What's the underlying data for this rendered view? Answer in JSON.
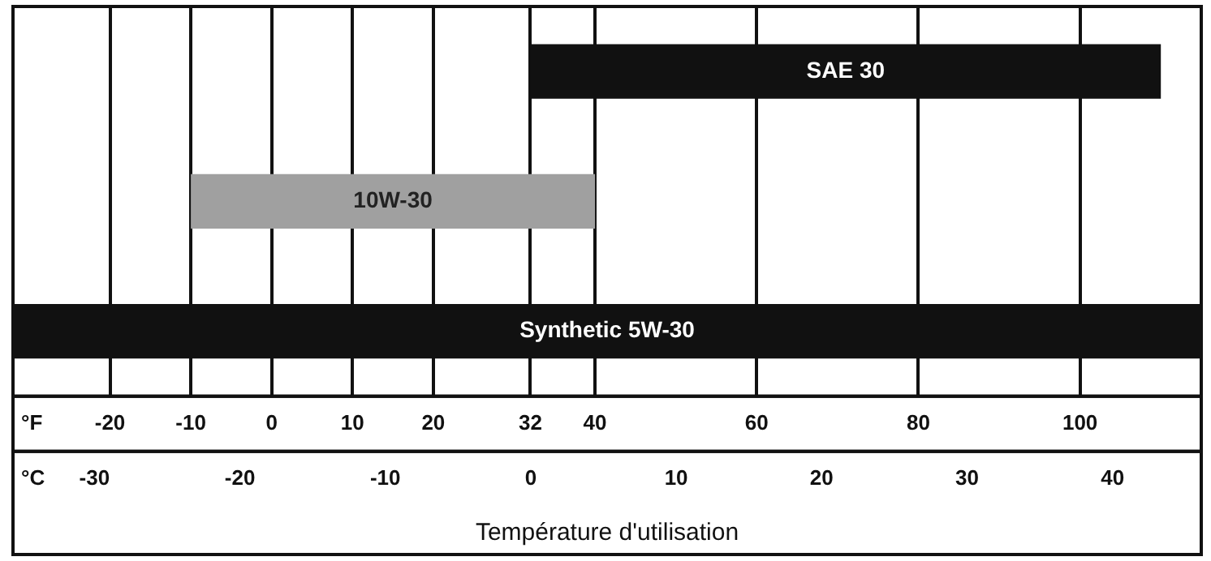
{
  "chart_data": {
    "type": "bar",
    "orientation": "horizontal",
    "categories": [
      "SAE 30",
      "10W-30",
      "Synthetic 5W-30"
    ],
    "base": [
      32,
      -10,
      -32
    ],
    "values": [
      78,
      50,
      147
    ],
    "colors": [
      "#111111",
      "#a0a0a0",
      "#111111"
    ],
    "xlim": [
      -32,
      115
    ],
    "xticks": [
      -20,
      -10,
      0,
      10,
      20,
      32,
      40,
      60,
      80,
      100
    ],
    "x2lim": [
      -35.6,
      46.1
    ],
    "x2ticks": [
      -30,
      -20,
      -10,
      0,
      10,
      20,
      30,
      40
    ],
    "xlabel": "Température d'utilisation",
    "annotations": [
      "°F",
      "°C"
    ],
    "grid": "x",
    "tick_labels": "x",
    "legend": false
  }
}
